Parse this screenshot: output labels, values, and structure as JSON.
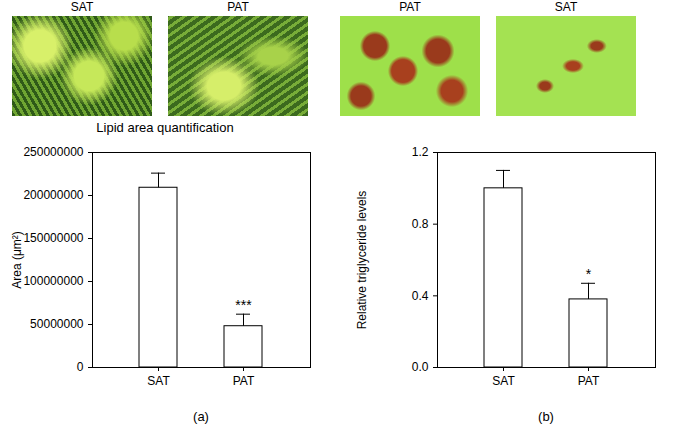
{
  "image_panels": [
    {
      "label": "SAT"
    },
    {
      "label": "PAT"
    },
    {
      "label": "PAT"
    },
    {
      "label": "SAT"
    }
  ],
  "chart_data": [
    {
      "type": "bar",
      "title": "Lipid area quantification",
      "panel": "(a)",
      "y_label": "Area (μm²)",
      "categories": [
        "SAT",
        "PAT"
      ],
      "values": [
        209000000,
        48000000
      ],
      "errors": [
        17000000,
        14000000
      ],
      "annotations": [
        {
          "category": "PAT",
          "text": "***"
        }
      ],
      "color": "#ffffff",
      "ylim": [
        0,
        250000000
      ],
      "yticks": [
        0,
        50000000,
        100000000,
        150000000,
        200000000,
        250000000
      ]
    },
    {
      "type": "bar",
      "panel": "(b)",
      "y_label": "Relative triglyceride levels",
      "categories": [
        "SAT",
        "PAT"
      ],
      "values": [
        1.0,
        0.38
      ],
      "errors": [
        0.1,
        0.09
      ],
      "annotations": [
        {
          "category": "PAT",
          "text": "*"
        }
      ],
      "color": "#ffffff",
      "ylim": [
        0,
        1.2
      ],
      "yticks": [
        {
          "value": 0,
          "label": "0.0"
        },
        0.4,
        0.8,
        1.2
      ]
    }
  ]
}
